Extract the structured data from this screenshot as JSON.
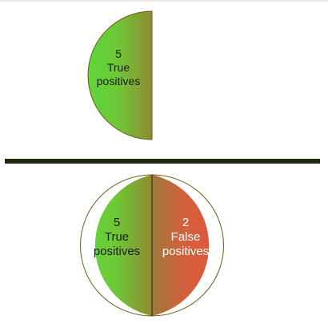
{
  "top": {
    "count": "5",
    "label_line1": "True",
    "label_line2": "positives"
  },
  "bottom": {
    "left": {
      "count": "5",
      "label_line1": "True",
      "label_line2": "positives"
    },
    "right": {
      "count": "2",
      "label_line1": "False",
      "label_line2": "positives"
    }
  },
  "colors": {
    "true_positive_light": "#5dd63a",
    "true_positive_dark": "#8e8a34",
    "false_positive_light": "#e0533d",
    "false_positive_dark": "#9d7a3c",
    "divider_bar": "#1e2a12",
    "outline": "#6d5c1a"
  }
}
